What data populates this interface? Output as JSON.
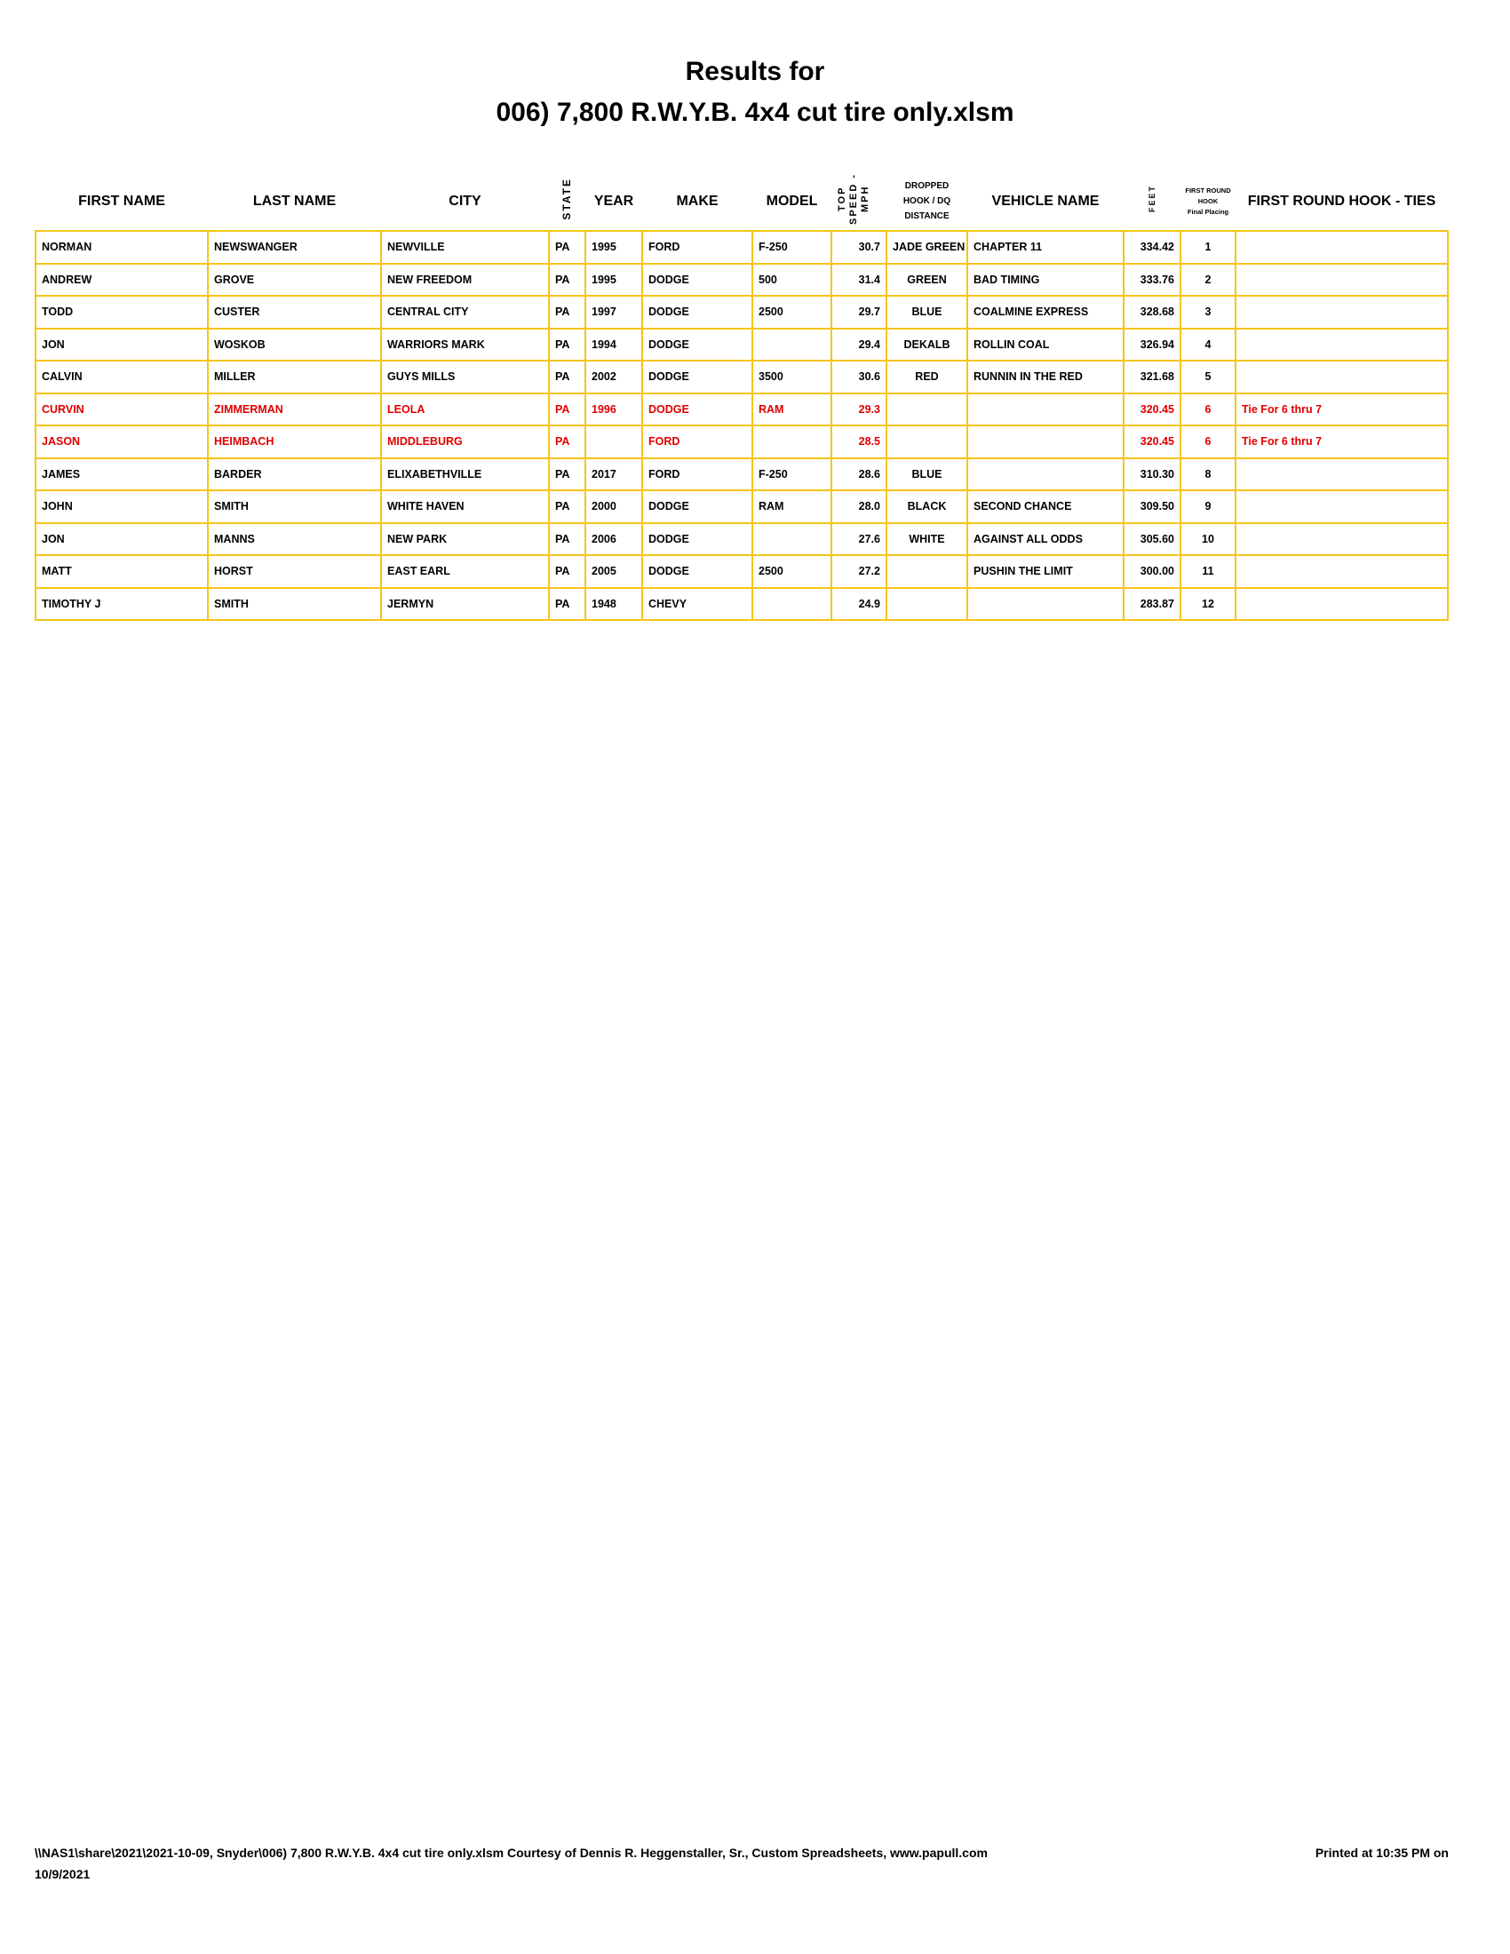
{
  "title_line1": "Results for",
  "title_line2": "006) 7,800 R.W.Y.B. 4x4 cut tire only.xlsm",
  "columns": {
    "first_name": "FIRST NAME",
    "last_name": "LAST NAME",
    "city": "CITY",
    "state": "STATE",
    "year": "YEAR",
    "make": "MAKE",
    "model": "MODEL",
    "top_speed": "TOP SPEED - MPH",
    "dropped_1": "DROPPED",
    "dropped_2": "HOOK / DQ",
    "dropped_3": "DISTANCE",
    "vehicle_name": "VEHICLE NAME",
    "feet": "FEET",
    "placing_1": "FIRST ROUND",
    "placing_2": "HOOK",
    "placing_3": "Final Placing",
    "ties": "FIRST ROUND HOOK - TIES"
  },
  "rows": [
    {
      "first": "NORMAN",
      "last": "NEWSWANGER",
      "city": "NEWVILLE",
      "state": "PA",
      "year": "1995",
      "make": "FORD",
      "model": "F-250",
      "speed": "30.7",
      "dropped": "JADE GREEN",
      "vehicle": "CHAPTER 11",
      "feet": "334.42",
      "place": "1",
      "ties": "",
      "highlight": false
    },
    {
      "first": "ANDREW",
      "last": "GROVE",
      "city": "NEW FREEDOM",
      "state": "PA",
      "year": "1995",
      "make": "DODGE",
      "model": "500",
      "speed": "31.4",
      "dropped": "GREEN",
      "vehicle": "BAD TIMING",
      "feet": "333.76",
      "place": "2",
      "ties": "",
      "highlight": false
    },
    {
      "first": "TODD",
      "last": "CUSTER",
      "city": "CENTRAL CITY",
      "state": "PA",
      "year": "1997",
      "make": "DODGE",
      "model": "2500",
      "speed": "29.7",
      "dropped": "BLUE",
      "vehicle": "COALMINE EXPRESS",
      "feet": "328.68",
      "place": "3",
      "ties": "",
      "highlight": false
    },
    {
      "first": "JON",
      "last": "WOSKOB",
      "city": "WARRIORS MARK",
      "state": "PA",
      "year": "1994",
      "make": "DODGE",
      "model": "",
      "speed": "29.4",
      "dropped": "DEKALB",
      "vehicle": "ROLLIN COAL",
      "feet": "326.94",
      "place": "4",
      "ties": "",
      "highlight": false
    },
    {
      "first": "CALVIN",
      "last": "MILLER",
      "city": "GUYS MILLS",
      "state": "PA",
      "year": "2002",
      "make": "DODGE",
      "model": "3500",
      "speed": "30.6",
      "dropped": "RED",
      "vehicle": "RUNNIN IN THE RED",
      "feet": "321.68",
      "place": "5",
      "ties": "",
      "highlight": false
    },
    {
      "first": "CURVIN",
      "last": "ZIMMERMAN",
      "city": "LEOLA",
      "state": "PA",
      "year": "1996",
      "make": "DODGE",
      "model": "RAM",
      "speed": "29.3",
      "dropped": "",
      "vehicle": "",
      "feet": "320.45",
      "place": "6",
      "ties": "Tie For 6 thru 7",
      "highlight": true
    },
    {
      "first": "JASON",
      "last": "HEIMBACH",
      "city": "MIDDLEBURG",
      "state": "PA",
      "year": "",
      "make": "FORD",
      "model": "",
      "speed": "28.5",
      "dropped": "",
      "vehicle": "",
      "feet": "320.45",
      "place": "6",
      "ties": "Tie For 6 thru 7",
      "highlight": true
    },
    {
      "first": "JAMES",
      "last": "BARDER",
      "city": "ELIXABETHVILLE",
      "state": "PA",
      "year": "2017",
      "make": "FORD",
      "model": "F-250",
      "speed": "28.6",
      "dropped": "BLUE",
      "vehicle": "",
      "feet": "310.30",
      "place": "8",
      "ties": "",
      "highlight": false
    },
    {
      "first": "JOHN",
      "last": "SMITH",
      "city": "WHITE HAVEN",
      "state": "PA",
      "year": "2000",
      "make": "DODGE",
      "model": "RAM",
      "speed": "28.0",
      "dropped": "BLACK",
      "vehicle": "SECOND CHANCE",
      "feet": "309.50",
      "place": "9",
      "ties": "",
      "highlight": false
    },
    {
      "first": "JON",
      "last": "MANNS",
      "city": "NEW PARK",
      "state": "PA",
      "year": "2006",
      "make": "DODGE",
      "model": "",
      "speed": "27.6",
      "dropped": "WHITE",
      "vehicle": "AGAINST ALL ODDS",
      "feet": "305.60",
      "place": "10",
      "ties": "",
      "highlight": false
    },
    {
      "first": "MATT",
      "last": "HORST",
      "city": "EAST EARL",
      "state": "PA",
      "year": "2005",
      "make": "DODGE",
      "model": "2500",
      "speed": "27.2",
      "dropped": "",
      "vehicle": "PUSHIN THE LIMIT",
      "feet": "300.00",
      "place": "11",
      "ties": "",
      "highlight": false
    },
    {
      "first": "TIMOTHY J",
      "last": "SMITH",
      "city": "JERMYN",
      "state": "PA",
      "year": "1948",
      "make": "CHEVY",
      "model": "",
      "speed": "24.9",
      "dropped": "",
      "vehicle": "",
      "feet": "283.87",
      "place": "12",
      "ties": "",
      "highlight": false
    }
  ],
  "colors": {
    "grid": "#f5c518",
    "highlight": "#e00000"
  },
  "footer": {
    "left": "\\\\NAS1\\share\\2021\\2021-10-09, Snyder\\006) 7,800 R.W.Y.B. 4x4 cut tire only.xlsm  Courtesy of Dennis R. Heggenstaller, Sr., Custom Spreadsheets, www.papull.com",
    "printed": "Printed at 10:35 PM on",
    "date": "10/9/2021"
  }
}
